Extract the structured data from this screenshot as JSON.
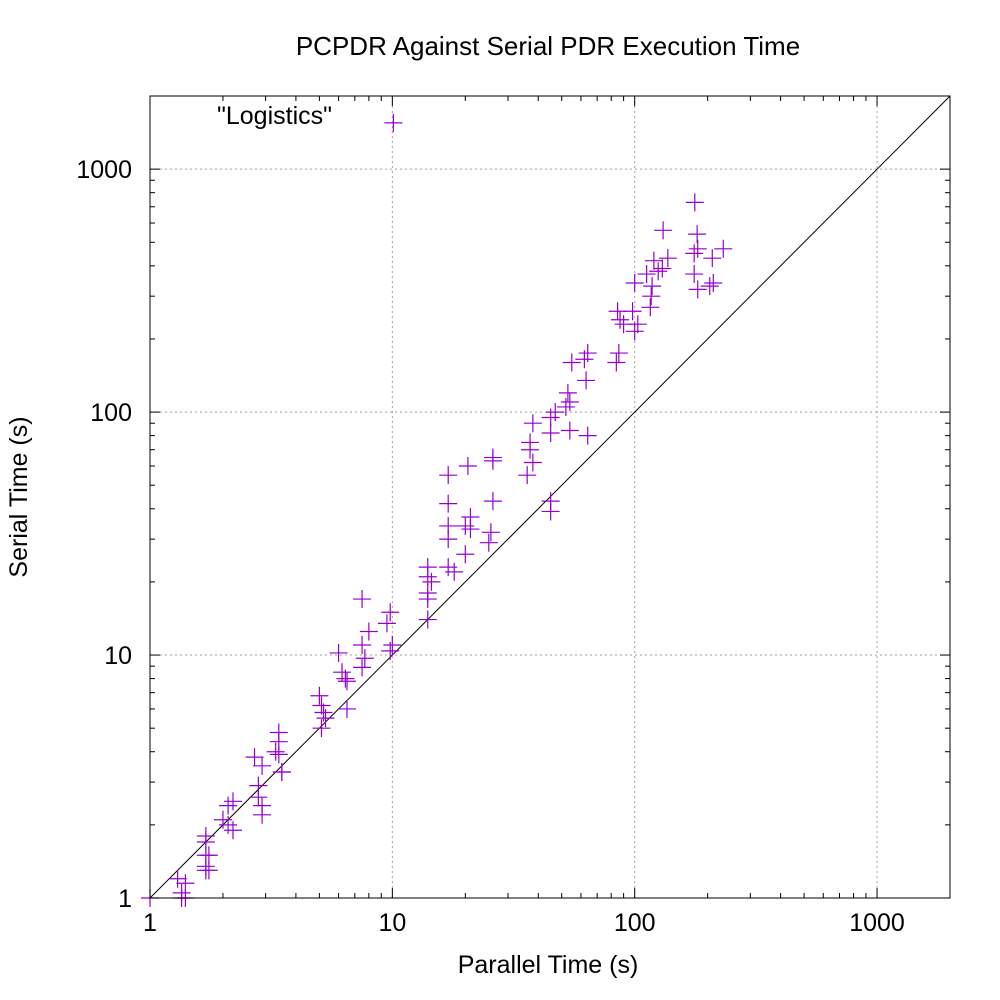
{
  "chart_data": {
    "type": "scatter",
    "title": "PCPDR Against Serial PDR Execution Time",
    "xlabel": "Parallel Time (s)",
    "ylabel": "Serial Time (s)",
    "xscale": "log",
    "yscale": "log",
    "xlim": [
      1,
      2000
    ],
    "ylim": [
      1,
      2000
    ],
    "x_ticks": [
      1,
      10,
      100,
      1000
    ],
    "y_ticks": [
      1,
      10,
      100,
      1000
    ],
    "x_tick_labels": [
      "1",
      "10",
      "100",
      "1000"
    ],
    "y_tick_labels": [
      "1",
      "10",
      "100",
      "1000"
    ],
    "grid": true,
    "reference_line": "y = x",
    "point_color": "#9400d3",
    "line_color": "#000000",
    "annotations": [
      {
        "text": "\"Logistics\"",
        "x": 1.75,
        "y": 1550
      }
    ],
    "points": [
      [
        10.1,
        1550
      ],
      [
        177,
        730
      ],
      [
        181,
        540
      ],
      [
        131,
        560
      ],
      [
        232,
        470
      ],
      [
        209,
        430
      ],
      [
        182,
        470
      ],
      [
        176,
        450
      ],
      [
        137,
        430
      ],
      [
        120,
        420
      ],
      [
        125,
        380
      ],
      [
        112,
        370
      ],
      [
        176,
        370
      ],
      [
        118,
        330
      ],
      [
        182,
        320
      ],
      [
        211,
        340
      ],
      [
        204,
        330
      ],
      [
        130,
        390
      ],
      [
        100,
        340
      ],
      [
        117,
        300
      ],
      [
        116,
        270
      ],
      [
        98,
        260
      ],
      [
        100,
        215
      ],
      [
        103,
        230
      ],
      [
        87,
        240
      ],
      [
        85,
        260
      ],
      [
        90,
        230
      ],
      [
        64,
        175
      ],
      [
        62,
        165
      ],
      [
        55,
        160
      ],
      [
        86,
        175
      ],
      [
        84,
        160
      ],
      [
        63,
        135
      ],
      [
        53,
        120
      ],
      [
        54,
        110
      ],
      [
        52,
        105
      ],
      [
        47,
        100
      ],
      [
        45,
        95
      ],
      [
        45,
        82
      ],
      [
        38,
        90
      ],
      [
        37,
        75
      ],
      [
        37,
        70
      ],
      [
        38,
        62
      ],
      [
        36,
        55
      ],
      [
        54,
        84
      ],
      [
        64,
        80
      ],
      [
        26,
        65
      ],
      [
        26,
        63
      ],
      [
        17,
        55
      ],
      [
        20.5,
        60
      ],
      [
        26,
        43
      ],
      [
        45,
        43
      ],
      [
        45,
        39
      ],
      [
        17,
        42
      ],
      [
        17,
        34
      ],
      [
        21,
        37
      ],
      [
        21,
        33
      ],
      [
        20,
        34
      ],
      [
        25.5,
        32
      ],
      [
        25,
        29
      ],
      [
        17,
        30
      ],
      [
        17,
        23
      ],
      [
        18,
        22
      ],
      [
        20,
        26
      ],
      [
        14,
        23
      ],
      [
        14,
        21
      ],
      [
        14.5,
        20
      ],
      [
        14,
        18
      ],
      [
        14,
        17
      ],
      [
        14,
        14
      ],
      [
        7.5,
        17
      ],
      [
        8,
        12.5
      ],
      [
        9.8,
        15
      ],
      [
        9.5,
        13.5
      ],
      [
        7.5,
        11
      ],
      [
        7.7,
        9.7
      ],
      [
        7.5,
        8.9
      ],
      [
        10,
        11
      ],
      [
        9.8,
        10.4
      ],
      [
        6,
        10.2
      ],
      [
        6.2,
        8.5
      ],
      [
        6.4,
        8.0
      ],
      [
        6.5,
        7.8
      ],
      [
        6.5,
        6.0
      ],
      [
        5,
        6.8
      ],
      [
        5.1,
        6.2
      ],
      [
        5.2,
        5.8
      ],
      [
        5.3,
        5.5
      ],
      [
        5.1,
        5.0
      ],
      [
        3.4,
        4.8
      ],
      [
        3.4,
        4.4
      ],
      [
        3.3,
        4.0
      ],
      [
        3.4,
        3.9
      ],
      [
        3.5,
        3.3
      ],
      [
        3.5,
        3.3
      ],
      [
        2.7,
        3.8
      ],
      [
        2.9,
        3.5
      ],
      [
        2.8,
        2.9
      ],
      [
        2.8,
        2.6
      ],
      [
        2.9,
        2.4
      ],
      [
        2.9,
        2.2
      ],
      [
        2.2,
        2.5
      ],
      [
        2.1,
        2.4
      ],
      [
        2.0,
        2.1
      ],
      [
        2.1,
        2.0
      ],
      [
        2.2,
        1.9
      ],
      [
        1.7,
        1.8
      ],
      [
        1.7,
        1.7
      ],
      [
        1.7,
        1.5
      ],
      [
        1.75,
        1.5
      ],
      [
        1.7,
        1.35
      ],
      [
        1.75,
        1.3
      ],
      [
        1.7,
        1.3
      ],
      [
        1.3,
        1.2
      ],
      [
        1.4,
        1.15
      ],
      [
        1.35,
        1.05
      ],
      [
        1.4,
        1.0
      ],
      [
        1.35,
        1.0
      ],
      [
        1.0,
        1.0
      ]
    ]
  }
}
